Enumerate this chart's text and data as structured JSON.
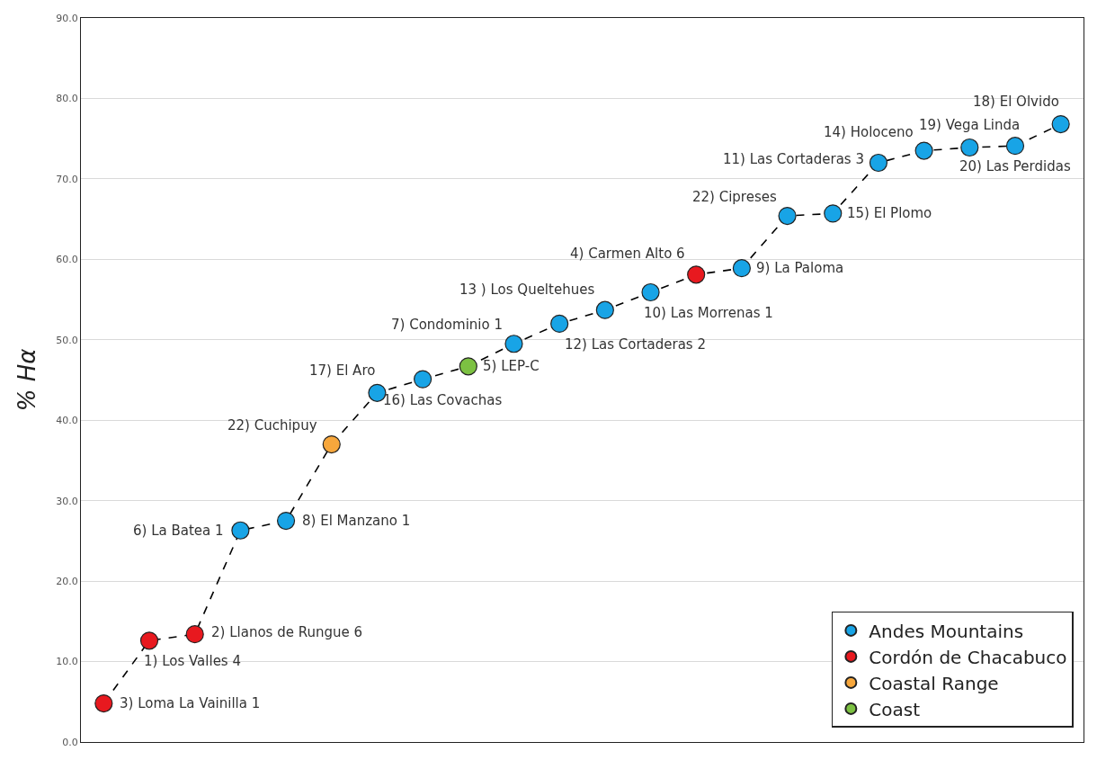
{
  "chart_data": {
    "type": "scatter",
    "ylabel": "% Hα",
    "categories": [
      null,
      null,
      null,
      null,
      null,
      null,
      null,
      null,
      null,
      null,
      null,
      null,
      null,
      null,
      null,
      null,
      null,
      null,
      null,
      null,
      null,
      null
    ],
    "series": [
      {
        "type": "line",
        "color": "#000000",
        "line_style": "dashed",
        "marker": "none",
        "values": [
          4.8,
          12.6,
          13.4,
          26.3,
          27.5,
          37.0,
          43.4,
          45.1,
          46.7,
          49.5,
          52.0,
          53.7,
          55.9,
          58.1,
          58.9,
          65.4,
          65.7,
          72.0,
          73.5,
          73.9,
          74.1,
          76.8
        ]
      },
      {
        "name": "Andes Mountains",
        "color": "#18a4e6",
        "marker": "circle",
        "values": [
          null,
          null,
          null,
          26.3,
          27.5,
          null,
          43.4,
          45.1,
          null,
          49.5,
          52.0,
          53.7,
          55.9,
          null,
          58.9,
          65.4,
          65.7,
          72.0,
          73.5,
          73.9,
          74.1,
          76.8
        ]
      },
      {
        "name": "Cordón de Chacabuco",
        "color": "#e8191f",
        "marker": "circle",
        "values": [
          4.8,
          12.6,
          13.4,
          null,
          null,
          null,
          null,
          null,
          null,
          null,
          null,
          null,
          null,
          58.1,
          null,
          null,
          null,
          null,
          null,
          null,
          null,
          null
        ]
      },
      {
        "name": "Coastal Range",
        "color": "#f7a73c",
        "marker": "circle",
        "values": [
          null,
          null,
          null,
          null,
          null,
          37.0,
          null,
          null,
          null,
          null,
          null,
          null,
          null,
          null,
          null,
          null,
          null,
          null,
          null,
          null,
          null,
          null
        ]
      },
      {
        "name": "Coast",
        "color": "#7cc142",
        "marker": "circle",
        "values": [
          null,
          null,
          null,
          null,
          null,
          null,
          null,
          null,
          46.7,
          null,
          null,
          null,
          null,
          null,
          null,
          null,
          null,
          null,
          null,
          null,
          null,
          null
        ]
      }
    ],
    "ylim": [
      0,
      90
    ],
    "yticks": [
      {
        "value": 0,
        "label": "0.0"
      },
      {
        "value": 10,
        "label": "10.0"
      },
      {
        "value": 20,
        "label": "20.0"
      },
      {
        "value": 30,
        "label": "30.0"
      },
      {
        "value": 40,
        "label": "40.0"
      },
      {
        "value": 50,
        "label": "50.0"
      },
      {
        "value": 60,
        "label": "60.0"
      },
      {
        "value": 70,
        "label": "70.0"
      },
      {
        "value": 80,
        "label": "80.0"
      },
      {
        "value": 90,
        "label": "90.0"
      }
    ],
    "tick_labels": "y",
    "grid": "y",
    "legend": "bottom right",
    "annotations": [
      "3) Loma La Vainilla 1",
      "1) Los Valles 4",
      "2) Llanos de Rungue 6",
      "6) La Batea 1",
      "8) El Manzano 1",
      "22) Cuchipuy",
      "17) El Aro",
      "16) Las Covachas",
      "5) LEP-C",
      "7) Condominio 1",
      "12) Las Cortaderas 2",
      "13 ) Los Queltehues",
      "10) Las Morrenas 1",
      "4) Carmen Alto 6",
      "9) La Paloma",
      "22) Cipreses",
      "15) El Plomo",
      "11) Las Cortaderas 3",
      "14) Holoceno",
      "19) Vega Linda",
      "20) Las Perdidas",
      "18) El Olvido"
    ]
  }
}
